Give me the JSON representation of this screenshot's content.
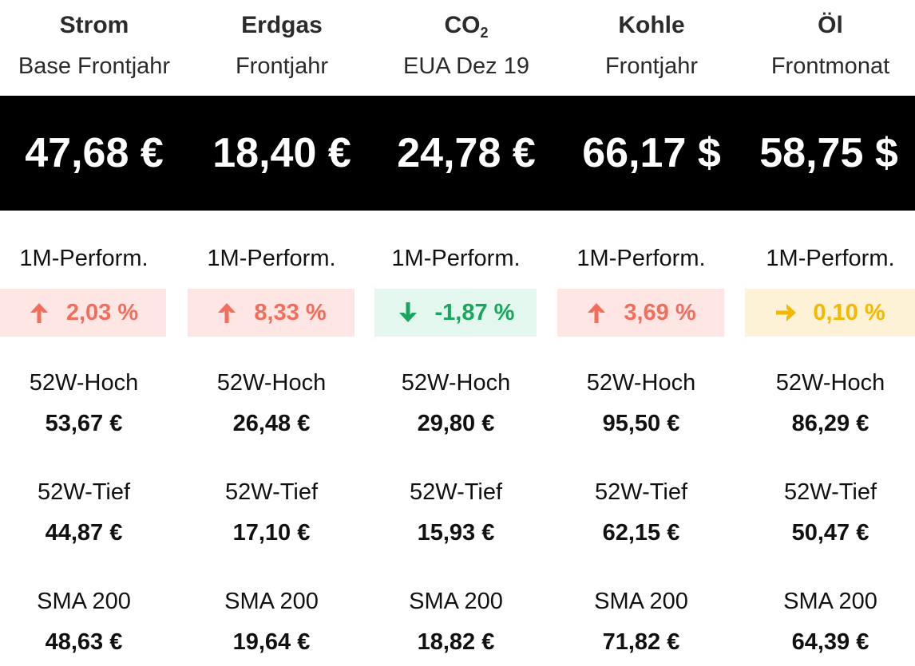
{
  "commodities": [
    {
      "name": "Strom",
      "contract": "Base Frontjahr",
      "price": "47,68 €",
      "perf_label": "1M-Perform.",
      "perf_value": "2,03 %",
      "perf_direction": "up",
      "perf_icon": "arrow-up-icon",
      "high_label": "52W-Hoch",
      "high_value": "53,67 €",
      "low_label": "52W-Tief",
      "low_value": "44,87 €",
      "sma_label": "SMA 200",
      "sma_value": "48,63 €"
    },
    {
      "name": "Erdgas",
      "contract": "Frontjahr",
      "price": "18,40 €",
      "perf_label": "1M-Perform.",
      "perf_value": "8,33 %",
      "perf_direction": "up",
      "perf_icon": "arrow-up-icon",
      "high_label": "52W-Hoch",
      "high_value": "26,48 €",
      "low_label": "52W-Tief",
      "low_value": "17,10 €",
      "sma_label": "SMA 200",
      "sma_value": "19,64 €"
    },
    {
      "name": "CO",
      "name_sub": "2",
      "contract": "EUA Dez 19",
      "price": "24,78 €",
      "perf_label": "1M-Perform.",
      "perf_value": "-1,87 %",
      "perf_direction": "down",
      "perf_icon": "arrow-down-icon",
      "high_label": "52W-Hoch",
      "high_value": "29,80 €",
      "low_label": "52W-Tief",
      "low_value": "15,93 €",
      "sma_label": "SMA 200",
      "sma_value": "18,82 €"
    },
    {
      "name": "Kohle",
      "contract": "Frontjahr",
      "price": "66,17 $",
      "perf_label": "1M-Perform.",
      "perf_value": "3,69 %",
      "perf_direction": "up",
      "perf_icon": "arrow-up-icon",
      "high_label": "52W-Hoch",
      "high_value": "95,50 €",
      "low_label": "52W-Tief",
      "low_value": "62,15 €",
      "sma_label": "SMA 200",
      "sma_value": "71,82 €"
    },
    {
      "name": "Öl",
      "contract": "Frontmonat",
      "price": "58,75 $",
      "perf_label": "1M-Perform.",
      "perf_value": "0,10 %",
      "perf_direction": "flat",
      "perf_icon": "arrow-right-icon",
      "high_label": "52W-Hoch",
      "high_value": "86,29 €",
      "low_label": "52W-Tief",
      "low_value": "50,47 €",
      "sma_label": "SMA 200",
      "sma_value": "64,39 €"
    }
  ],
  "colors": {
    "up": "#f26d5b",
    "up_bg": "#fde6e3",
    "down": "#18a65e",
    "down_bg": "#e4f7ee",
    "flat": "#f5b800",
    "flat_bg": "#fdf1d6",
    "price_band": "#000000"
  }
}
